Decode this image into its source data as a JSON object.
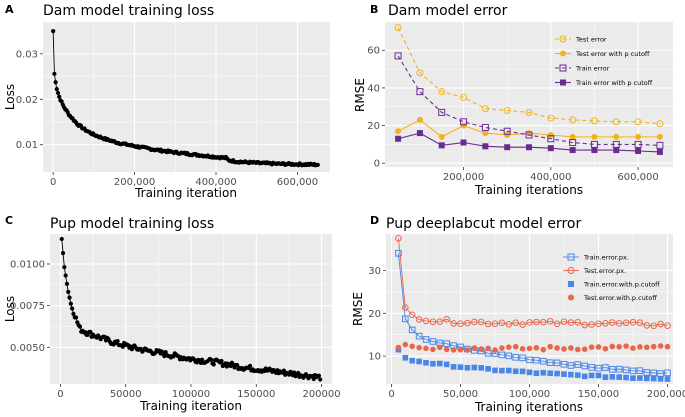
{
  "chart_data": [
    {
      "panel": "A",
      "type": "scatter",
      "title": "Dam model training loss",
      "xlabel": "Training iteration",
      "ylabel": "Loss",
      "xlim": [
        -25000,
        680000
      ],
      "ylim": [
        0.004,
        0.037
      ],
      "xticks": [
        0,
        200000,
        400000,
        600000
      ],
      "xtick_labels": [
        "0",
        "200,000",
        "400,000",
        "600,000"
      ],
      "yticks": [
        0.01,
        0.02,
        0.03
      ],
      "ytick_labels": [
        "0.01",
        "0.02",
        "0.03"
      ],
      "color": "#000000",
      "curve": {
        "x": [
          0,
          3000,
          8000,
          15000,
          25000,
          40000,
          60000,
          80000,
          100000,
          130000,
          160000,
          200000,
          250000,
          300000,
          350000,
          400000,
          425000,
          430000,
          450000,
          500000,
          550000,
          600000,
          650000
        ],
        "y": [
          0.035,
          0.0255,
          0.0225,
          0.0205,
          0.0185,
          0.0165,
          0.0145,
          0.0132,
          0.0122,
          0.0112,
          0.0104,
          0.0097,
          0.0089,
          0.0083,
          0.0078,
          0.0073,
          0.0071,
          0.0066,
          0.0063,
          0.006,
          0.0058,
          0.0057,
          0.0056
        ]
      },
      "n_points": 220,
      "noise": 0.00022
    },
    {
      "panel": "B",
      "type": "line",
      "title": "Dam model error",
      "xlabel": "Training iterations",
      "ylabel": "RMSE",
      "xlim": [
        20000,
        680000
      ],
      "ylim": [
        -2,
        75
      ],
      "xticks": [
        200000,
        400000,
        600000
      ],
      "xtick_labels": [
        "200,000",
        "400,000",
        "600,000"
      ],
      "yticks": [
        0,
        20,
        40,
        60
      ],
      "ytick_labels": [
        "0",
        "20",
        "40",
        "60"
      ],
      "x": [
        50000,
        100000,
        150000,
        200000,
        250000,
        300000,
        350000,
        400000,
        450000,
        500000,
        550000,
        600000,
        650000
      ],
      "series": [
        {
          "name": "Test error",
          "color": "#f2b31a",
          "dashed": true,
          "marker": "circle-open",
          "values": [
            72,
            48,
            38,
            35,
            29,
            28,
            27,
            24,
            23,
            22.5,
            22,
            22,
            21
          ]
        },
        {
          "name": "Test error with p cutoff",
          "color": "#f2b31a",
          "dashed": false,
          "marker": "circle-filled",
          "values": [
            17,
            23,
            14,
            20,
            16,
            15,
            16,
            15,
            14,
            14,
            14,
            14,
            14
          ]
        },
        {
          "name": "Train error",
          "color": "#6a2c91",
          "dashed": true,
          "marker": "square-open",
          "values": [
            57,
            38,
            27,
            22,
            19,
            17,
            15,
            13,
            11,
            10,
            10,
            10,
            9.5
          ]
        },
        {
          "name": "Train error with p cutoff",
          "color": "#6a2c91",
          "dashed": false,
          "marker": "square-filled",
          "values": [
            13,
            16,
            9.5,
            11,
            9,
            8.5,
            8.5,
            8,
            7,
            7,
            7,
            6.5,
            6
          ]
        }
      ],
      "legend_position": "top-right"
    },
    {
      "panel": "C",
      "type": "scatter",
      "title": "Pup model training loss",
      "xlabel": "Training iteration",
      "ylabel": "Loss",
      "xlim": [
        -8000,
        208000
      ],
      "ylim": [
        0.0028,
        0.0118
      ],
      "xticks": [
        0,
        50000,
        100000,
        150000,
        200000
      ],
      "xtick_labels": [
        "0",
        "50000",
        "100000",
        "150000",
        "200000"
      ],
      "yticks": [
        0.005,
        0.0075,
        0.01
      ],
      "ytick_labels": [
        "0.0050",
        "0.0075",
        "0.0100"
      ],
      "color": "#000000",
      "curve": {
        "x": [
          1000,
          3000,
          5000,
          8000,
          12000,
          15000,
          20000,
          30000,
          40000,
          50000,
          60000,
          80000,
          100000,
          120000,
          140000,
          160000,
          180000,
          199000
        ],
        "y": [
          0.0115,
          0.0098,
          0.0088,
          0.0076,
          0.0067,
          0.0061,
          0.0059,
          0.0056,
          0.0053,
          0.0051,
          0.0049,
          0.0046,
          0.0043,
          0.0041,
          0.0038,
          0.0036,
          0.0034,
          0.0032
        ]
      },
      "n_points": 200,
      "noise": 0.00016
    },
    {
      "panel": "D",
      "type": "line",
      "title": "Pup deeplabcut model error",
      "xlabel": "Training iterations",
      "ylabel": "RMSE",
      "xlim": [
        -4000,
        204000
      ],
      "ylim": [
        3.5,
        38.5
      ],
      "xticks": [
        0,
        50000,
        100000,
        150000,
        200000
      ],
      "xtick_labels": [
        "0",
        "50,000",
        "100,000",
        "150,000",
        "200,000"
      ],
      "yticks": [
        10,
        20,
        30
      ],
      "ytick_labels": [
        "10",
        "20",
        "30"
      ],
      "series": [
        {
          "name": "Train.error.px.",
          "color": "#4a86e8",
          "marker": "square-open",
          "line": true,
          "x_start": 5000,
          "x_end": 200000,
          "n": 40,
          "curve_x": [
            5000,
            10000,
            15000,
            20000,
            30000,
            50000,
            75000,
            100000,
            125000,
            150000,
            175000,
            200000
          ],
          "curve_y": [
            34,
            18.5,
            16,
            14.5,
            13.5,
            12,
            10.5,
            9.3,
            8.2,
            7.3,
            6.6,
            6
          ]
        },
        {
          "name": "Test.error.px.",
          "color": "#e8674a",
          "marker": "circle-open",
          "line": true,
          "x_start": 5000,
          "x_end": 200000,
          "n": 40,
          "curve_x": [
            5000,
            10000,
            15000,
            20000,
            30000,
            50000,
            75000,
            100000,
            125000,
            150000,
            175000,
            200000
          ],
          "curve_y": [
            37.5,
            21,
            19.5,
            19,
            18.3,
            18,
            17.8,
            17.8,
            17.7,
            17.7,
            17.5,
            17.3
          ]
        },
        {
          "name": "Train.error.with.p.cutoff",
          "color": "#4a86e8",
          "marker": "square-filled",
          "line": false,
          "x_start": 5000,
          "x_end": 200000,
          "n": 40,
          "curve_x": [
            5000,
            10000,
            15000,
            20000,
            30000,
            50000,
            75000,
            100000,
            125000,
            150000,
            175000,
            200000
          ],
          "curve_y": [
            11.5,
            9.5,
            9,
            8.8,
            8.3,
            7.5,
            6.8,
            6.2,
            5.7,
            5.3,
            5,
            4.8
          ]
        },
        {
          "name": "Test.error.with.p.cutoff",
          "color": "#e8674a",
          "marker": "circle-filled",
          "line": false,
          "x_start": 5000,
          "x_end": 200000,
          "n": 40,
          "curve_x": [
            5000,
            10000,
            20000,
            50000,
            100000,
            150000,
            200000
          ],
          "curve_y": [
            12,
            13,
            12,
            11.8,
            11.8,
            12,
            12
          ]
        }
      ],
      "legend_position": "top-right"
    }
  ]
}
